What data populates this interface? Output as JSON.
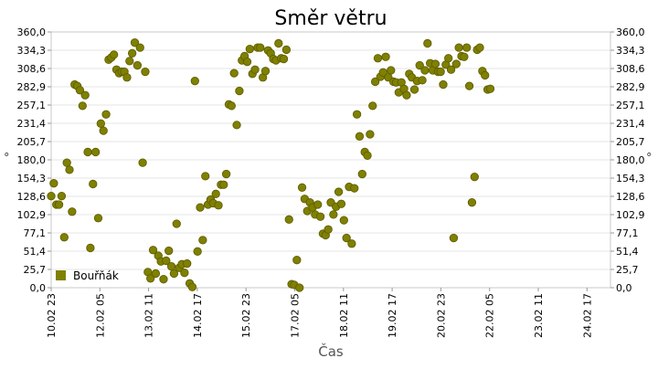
{
  "chart_data": {
    "type": "scatter",
    "title": "Směr větru",
    "xlabel": "Čas",
    "ylabel": "°",
    "ylim": [
      0,
      360
    ],
    "yticks": [
      "360,0",
      "334,3",
      "308,6",
      "282,9",
      "257,1",
      "231,4",
      "205,7",
      "180,0",
      "154,3",
      "128,6",
      "102,9",
      "77,1",
      "51,4",
      "25,7",
      "0,0"
    ],
    "xticks": [
      "10.02 23",
      "12.02 05",
      "13.02 11",
      "14.02 17",
      "15.02 23",
      "17.02 05",
      "18.02 11",
      "19.02 17",
      "20.02 23",
      "22.02 05",
      "23.02 11",
      "24.02 17"
    ],
    "xlim_hours": [
      0,
      321
    ],
    "grid": true,
    "legend_position": "bottom-left",
    "series": [
      {
        "name": "Bouřňák",
        "color": "#808000",
        "points": [
          [
            0,
            129
          ],
          [
            1.5,
            147
          ],
          [
            3,
            117
          ],
          [
            4.5,
            117
          ],
          [
            6,
            129
          ],
          [
            7.5,
            71
          ],
          [
            9,
            176
          ],
          [
            10.5,
            166
          ],
          [
            12,
            107
          ],
          [
            13.5,
            286
          ],
          [
            15,
            284
          ],
          [
            16.5,
            278
          ],
          [
            18,
            256
          ],
          [
            19.5,
            271
          ],
          [
            21,
            191
          ],
          [
            22.5,
            56
          ],
          [
            24,
            146
          ],
          [
            25.5,
            191
          ],
          [
            27,
            98
          ],
          [
            28.5,
            231
          ],
          [
            30,
            221
          ],
          [
            31.5,
            244
          ],
          [
            33,
            321
          ],
          [
            34.5,
            324
          ],
          [
            36,
            328
          ],
          [
            37.5,
            307
          ],
          [
            39,
            302
          ],
          [
            40.5,
            304
          ],
          [
            42,
            304
          ],
          [
            43.5,
            296
          ],
          [
            45,
            319
          ],
          [
            46.5,
            330
          ],
          [
            48,
            345
          ],
          [
            49.5,
            313
          ],
          [
            51,
            338
          ],
          [
            52.5,
            176
          ],
          [
            54,
            304
          ],
          [
            55.5,
            22
          ],
          [
            57,
            13
          ],
          [
            58.5,
            53
          ],
          [
            60,
            20
          ],
          [
            61.5,
            45
          ],
          [
            63,
            37
          ],
          [
            64.5,
            12
          ],
          [
            66,
            38
          ],
          [
            67.5,
            52
          ],
          [
            69,
            30
          ],
          [
            70.5,
            20
          ],
          [
            72,
            90
          ],
          [
            73.5,
            28
          ],
          [
            75,
            33
          ],
          [
            76.5,
            21
          ],
          [
            78,
            34
          ],
          [
            79.5,
            6
          ],
          [
            81,
            1
          ],
          [
            82.5,
            291
          ],
          [
            84,
            51
          ],
          [
            85.5,
            113
          ],
          [
            87,
            67
          ],
          [
            88.5,
            157
          ],
          [
            90,
            117
          ],
          [
            91.5,
            124
          ],
          [
            93,
            119
          ],
          [
            94.5,
            132
          ],
          [
            96,
            116
          ],
          [
            97.5,
            145
          ],
          [
            99,
            145
          ],
          [
            100.5,
            160
          ],
          [
            102,
            258
          ],
          [
            103.5,
            256
          ],
          [
            105,
            302
          ],
          [
            106.5,
            229
          ],
          [
            108,
            277
          ],
          [
            109.5,
            320
          ],
          [
            111,
            326
          ],
          [
            112.5,
            318
          ],
          [
            114,
            336
          ],
          [
            115.5,
            301
          ],
          [
            117,
            307
          ],
          [
            118.5,
            338
          ],
          [
            120,
            338
          ],
          [
            121.5,
            296
          ],
          [
            123,
            305
          ],
          [
            124.5,
            334
          ],
          [
            126,
            330
          ],
          [
            127.5,
            322
          ],
          [
            129,
            320
          ],
          [
            130.5,
            344
          ],
          [
            132,
            323
          ],
          [
            133.5,
            322
          ],
          [
            135,
            335
          ],
          [
            136.5,
            96
          ],
          [
            138,
            5
          ],
          [
            139.5,
            4
          ],
          [
            141,
            39
          ],
          [
            142.5,
            0
          ],
          [
            144,
            141
          ],
          [
            145.5,
            125
          ],
          [
            147,
            108
          ],
          [
            148.5,
            120
          ],
          [
            150,
            113
          ],
          [
            151.5,
            103
          ],
          [
            153,
            117
          ],
          [
            154.5,
            100
          ],
          [
            156,
            76
          ],
          [
            157.5,
            74
          ],
          [
            159,
            82
          ],
          [
            160.5,
            120
          ],
          [
            162,
            103
          ],
          [
            163.5,
            114
          ],
          [
            165,
            135
          ],
          [
            166.5,
            118
          ],
          [
            168,
            95
          ],
          [
            169.5,
            70
          ],
          [
            171,
            142
          ],
          [
            172.5,
            62
          ],
          [
            174,
            140
          ],
          [
            175.5,
            244
          ],
          [
            177,
            213
          ],
          [
            178.5,
            160
          ],
          [
            180,
            191
          ],
          [
            181.5,
            186
          ],
          [
            183,
            216
          ],
          [
            184.5,
            256
          ],
          [
            186,
            290
          ],
          [
            187.5,
            323
          ],
          [
            189,
            297
          ],
          [
            190.5,
            303
          ],
          [
            192,
            325
          ],
          [
            193.5,
            296
          ],
          [
            195,
            306
          ],
          [
            196.5,
            290
          ],
          [
            198,
            289
          ],
          [
            199.5,
            275
          ],
          [
            201,
            289
          ],
          [
            202.5,
            280
          ],
          [
            204,
            271
          ],
          [
            205.5,
            301
          ],
          [
            207,
            296
          ],
          [
            208.5,
            279
          ],
          [
            210,
            291
          ],
          [
            211.5,
            313
          ],
          [
            213,
            292
          ],
          [
            214.5,
            306
          ],
          [
            216,
            344
          ],
          [
            217.5,
            316
          ],
          [
            219,
            306
          ],
          [
            220.5,
            315
          ],
          [
            222,
            304
          ],
          [
            223.5,
            304
          ],
          [
            225,
            286
          ],
          [
            226.5,
            314
          ],
          [
            228,
            323
          ],
          [
            229.5,
            307
          ],
          [
            231,
            70
          ],
          [
            232.5,
            315
          ],
          [
            234,
            338
          ],
          [
            235.5,
            326
          ],
          [
            237,
            325
          ],
          [
            238.5,
            338
          ],
          [
            240,
            284
          ],
          [
            241.5,
            120
          ],
          [
            243,
            156
          ],
          [
            244.5,
            335
          ],
          [
            246,
            338
          ],
          [
            247.5,
            305
          ],
          [
            249,
            299
          ],
          [
            250.5,
            279
          ],
          [
            252,
            280
          ]
        ]
      }
    ]
  }
}
